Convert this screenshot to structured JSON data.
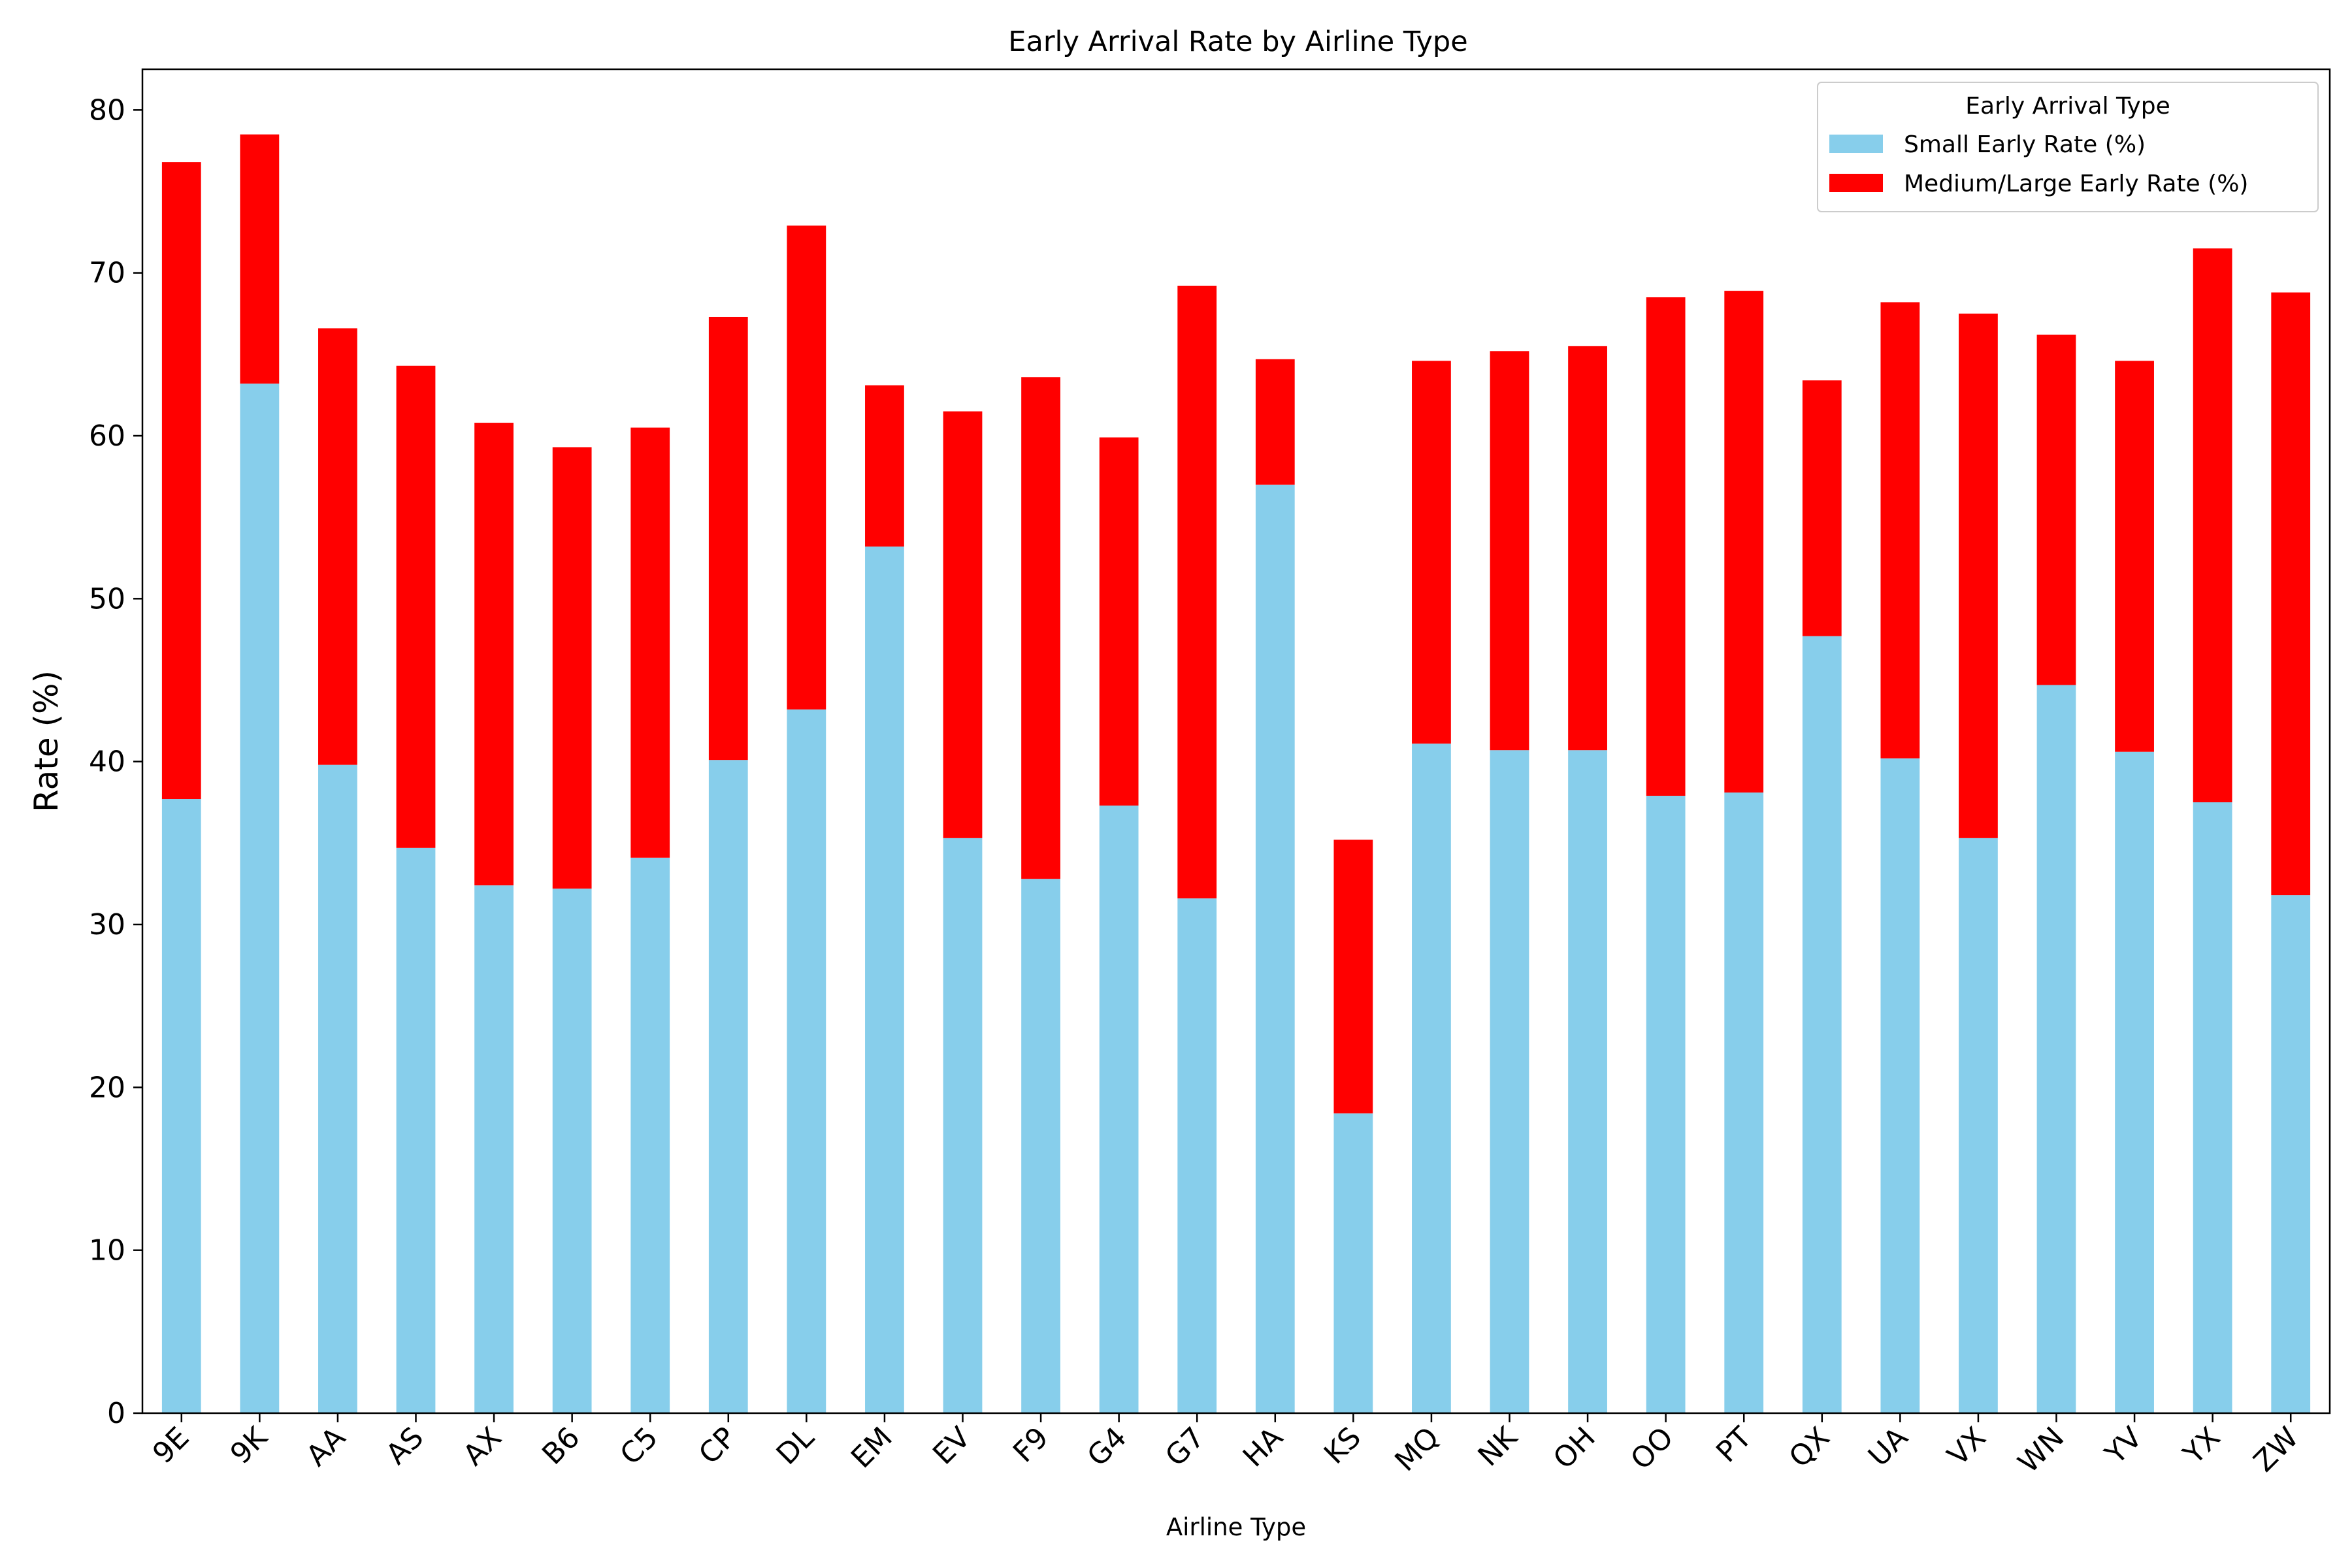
{
  "chart_data": {
    "type": "bar",
    "stacked": true,
    "title": "Early Arrival Rate by Airline Type",
    "xlabel": "Airline Type",
    "ylabel": "Rate (%)",
    "ylim": [
      0,
      82.5
    ],
    "yticks": [
      0,
      10,
      20,
      30,
      40,
      50,
      60,
      70,
      80
    ],
    "grid": false,
    "legend": {
      "title": "Early Arrival Type",
      "placement": "top-right"
    },
    "categories": [
      "9E",
      "9K",
      "AA",
      "AS",
      "AX",
      "B6",
      "C5",
      "CP",
      "DL",
      "EM",
      "EV",
      "F9",
      "G4",
      "G7",
      "HA",
      "KS",
      "MQ",
      "NK",
      "OH",
      "OO",
      "PT",
      "QX",
      "UA",
      "VX",
      "WN",
      "YV",
      "YX",
      "ZW"
    ],
    "series": [
      {
        "name": "Small Early Rate (%)",
        "color": "#87ceeb",
        "values": [
          37.7,
          63.2,
          39.8,
          34.7,
          32.4,
          32.2,
          34.1,
          40.1,
          43.2,
          53.2,
          35.3,
          32.8,
          37.3,
          31.6,
          57.0,
          18.4,
          41.1,
          40.7,
          40.7,
          37.9,
          38.1,
          47.7,
          40.2,
          35.3,
          44.7,
          40.6,
          37.5,
          31.8
        ]
      },
      {
        "name": "Medium/Large Early Rate (%)",
        "color": "#ff0000",
        "values": [
          39.1,
          15.3,
          26.8,
          29.6,
          28.4,
          27.1,
          26.4,
          27.2,
          29.7,
          9.9,
          26.2,
          30.8,
          22.6,
          37.6,
          7.7,
          16.8,
          23.5,
          24.5,
          24.8,
          30.6,
          30.8,
          15.7,
          28.0,
          32.2,
          21.5,
          24.0,
          34.0,
          37.0
        ]
      }
    ]
  }
}
